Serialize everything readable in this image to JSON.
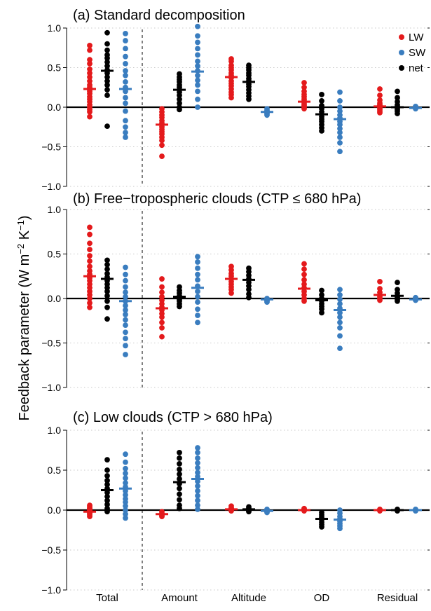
{
  "ylabel": {
    "main": "Feedback parameter (W m",
    "sup1": "−2",
    "mid": " K",
    "sup2": "−1",
    "end": ")"
  },
  "categories": [
    "Total",
    "Amount",
    "Altitude",
    "OD",
    "Residual"
  ],
  "legend": [
    {
      "key": "LW",
      "label": "LW",
      "color": "#e41a1c"
    },
    {
      "key": "SW",
      "label": "SW",
      "color": "#3a7dbf"
    },
    {
      "key": "net",
      "label": "net",
      "color": "#000000"
    }
  ],
  "yticks": [
    "1.0",
    "0.5",
    "0.0",
    "−0.5",
    "−1.0"
  ],
  "chart_data": [
    {
      "type": "scatter",
      "title": "(a) Standard decomposition",
      "ylim": [
        -1.0,
        1.0
      ],
      "grid": true,
      "legend": "top-right",
      "series": [
        {
          "name": "LW",
          "means": [
            0.23,
            -0.22,
            0.38,
            0.07,
            0.01
          ],
          "points": [
            [
              0.78,
              0.72,
              0.6,
              0.55,
              0.48,
              0.43,
              0.38,
              0.33,
              0.28,
              0.25,
              0.22,
              0.2,
              0.17,
              0.13,
              0.1,
              0.07,
              0.03,
              0.0,
              -0.03,
              -0.06,
              -0.12
            ],
            [
              -0.02,
              -0.06,
              -0.1,
              -0.13,
              -0.17,
              -0.2,
              -0.22,
              -0.25,
              -0.28,
              -0.31,
              -0.34,
              -0.38,
              -0.42,
              -0.48,
              -0.62
            ],
            [
              0.61,
              0.58,
              0.53,
              0.5,
              0.47,
              0.43,
              0.4,
              0.37,
              0.33,
              0.3,
              0.27,
              0.23,
              0.19,
              0.16,
              0.12
            ],
            [
              0.31,
              0.25,
              0.2,
              0.16,
              0.13,
              0.1,
              0.08,
              0.06,
              0.04,
              0.02,
              0.0,
              -0.02
            ],
            [
              0.23,
              0.15,
              0.09,
              0.05,
              0.03,
              0.02,
              0.01,
              0.0,
              -0.01,
              -0.03,
              -0.05,
              -0.07
            ]
          ]
        },
        {
          "name": "net",
          "means": [
            0.46,
            0.22,
            0.32,
            -0.09,
            0.0
          ],
          "points": [
            [
              0.94,
              0.8,
              0.72,
              0.66,
              0.62,
              0.57,
              0.52,
              0.47,
              0.43,
              0.38,
              0.33,
              0.28,
              0.22,
              0.15,
              -0.24
            ],
            [
              0.42,
              0.38,
              0.35,
              0.32,
              0.28,
              0.25,
              0.22,
              0.19,
              0.15,
              0.1,
              0.05,
              0.0,
              -0.03
            ],
            [
              0.53,
              0.5,
              0.47,
              0.43,
              0.4,
              0.36,
              0.33,
              0.29,
              0.26,
              0.22,
              0.18,
              0.14,
              0.1
            ],
            [
              0.16,
              0.08,
              0.02,
              -0.02,
              -0.06,
              -0.09,
              -0.12,
              -0.15,
              -0.18,
              -0.22,
              -0.26,
              -0.3
            ],
            [
              0.2,
              0.12,
              0.07,
              0.03,
              0.01,
              0.0,
              -0.01,
              -0.03,
              -0.05,
              -0.08
            ]
          ]
        },
        {
          "name": "SW",
          "means": [
            0.23,
            0.45,
            -0.06,
            -0.15,
            -0.01
          ],
          "points": [
            [
              0.93,
              0.84,
              0.74,
              0.64,
              0.55,
              0.46,
              0.4,
              0.32,
              0.25,
              0.2,
              0.12,
              0.05,
              -0.05,
              -0.17,
              -0.25,
              -0.32,
              -0.38
            ],
            [
              1.02,
              0.9,
              0.82,
              0.74,
              0.66,
              0.58,
              0.52,
              0.46,
              0.4,
              0.34,
              0.28,
              0.2,
              0.1,
              0.0
            ],
            [
              -0.02,
              -0.04,
              -0.05,
              -0.06,
              -0.07,
              -0.08,
              -0.1
            ],
            [
              0.19,
              0.08,
              0.0,
              -0.05,
              -0.1,
              -0.14,
              -0.18,
              -0.22,
              -0.27,
              -0.32,
              -0.38,
              -0.45,
              -0.56
            ],
            [
              0.01,
              0.0,
              -0.01,
              -0.02
            ]
          ]
        }
      ]
    },
    {
      "type": "scatter",
      "title": "(b) Free−tropospheric clouds (CTP ≤ 680 hPa)",
      "ylim": [
        -1.0,
        1.0
      ],
      "grid": true,
      "series": [
        {
          "name": "LW",
          "means": [
            0.25,
            -0.11,
            0.22,
            0.11,
            0.04
          ],
          "points": [
            [
              0.8,
              0.72,
              0.62,
              0.55,
              0.48,
              0.42,
              0.36,
              0.31,
              0.27,
              0.23,
              0.2,
              0.16,
              0.12,
              0.08,
              0.04,
              0.0,
              -0.05,
              -0.1
            ],
            [
              0.22,
              0.13,
              0.07,
              0.02,
              -0.02,
              -0.06,
              -0.1,
              -0.13,
              -0.17,
              -0.21,
              -0.27,
              -0.33,
              -0.43
            ],
            [
              0.36,
              0.32,
              0.28,
              0.25,
              0.22,
              0.19,
              0.16,
              0.13,
              0.1,
              0.06
            ],
            [
              0.39,
              0.33,
              0.27,
              0.21,
              0.16,
              0.12,
              0.08,
              0.04,
              0.0,
              -0.03
            ],
            [
              0.19,
              0.11,
              0.07,
              0.04,
              0.02,
              0.0,
              -0.02
            ]
          ]
        },
        {
          "name": "net",
          "means": [
            0.22,
            0.02,
            0.21,
            -0.02,
            0.03
          ],
          "points": [
            [
              0.43,
              0.38,
              0.33,
              0.28,
              0.24,
              0.2,
              0.16,
              0.12,
              0.08,
              0.03,
              -0.03,
              -0.1,
              -0.23
            ],
            [
              0.13,
              0.09,
              0.06,
              0.03,
              0.01,
              -0.01,
              -0.03,
              -0.06,
              -0.09
            ],
            [
              0.34,
              0.3,
              0.26,
              0.22,
              0.18,
              0.14,
              0.1,
              0.05,
              0.01
            ],
            [
              0.09,
              0.04,
              0.0,
              -0.03,
              -0.06,
              -0.09,
              -0.12,
              -0.16
            ],
            [
              0.18,
              0.1,
              0.06,
              0.03,
              0.01,
              -0.01,
              -0.03
            ]
          ]
        },
        {
          "name": "SW",
          "means": [
            -0.03,
            0.12,
            -0.01,
            -0.13,
            -0.01
          ],
          "points": [
            [
              0.35,
              0.27,
              0.2,
              0.13,
              0.07,
              0.02,
              -0.03,
              -0.08,
              -0.13,
              -0.18,
              -0.24,
              -0.3,
              -0.38,
              -0.45,
              -0.53,
              -0.63
            ],
            [
              0.47,
              0.41,
              0.34,
              0.27,
              0.21,
              0.14,
              0.08,
              0.02,
              -0.04,
              -0.12,
              -0.19,
              -0.27
            ],
            [
              0.0,
              -0.01,
              -0.02,
              -0.03,
              -0.04
            ],
            [
              0.1,
              0.04,
              -0.01,
              -0.06,
              -0.11,
              -0.16,
              -0.21,
              -0.27,
              -0.33,
              -0.42,
              -0.56
            ],
            [
              0.01,
              0.0,
              -0.01,
              -0.02
            ]
          ]
        }
      ]
    },
    {
      "type": "scatter",
      "title": "(c) Low clouds (CTP > 680 hPa)",
      "ylim": [
        -1.0,
        1.0
      ],
      "grid": true,
      "series": [
        {
          "name": "LW",
          "means": [
            -0.02,
            -0.05,
            0.01,
            0.0,
            0.0
          ],
          "points": [
            [
              0.06,
              0.04,
              0.02,
              0.01,
              0.0,
              -0.01,
              -0.02,
              -0.03,
              -0.04,
              -0.06,
              -0.08
            ],
            [
              -0.02,
              -0.04,
              -0.05,
              -0.06,
              -0.07,
              -0.08
            ],
            [
              0.05,
              0.03,
              0.02,
              0.01,
              0.0,
              -0.01
            ],
            [
              0.02,
              0.01,
              0.0,
              -0.01
            ],
            [
              0.01,
              0.0,
              -0.01
            ]
          ]
        },
        {
          "name": "net",
          "means": [
            0.25,
            0.35,
            0.01,
            -0.11,
            0.0
          ],
          "points": [
            [
              0.63,
              0.5,
              0.43,
              0.37,
              0.32,
              0.27,
              0.22,
              0.17,
              0.12,
              0.07,
              0.02,
              -0.02
            ],
            [
              0.72,
              0.65,
              0.58,
              0.51,
              0.45,
              0.39,
              0.33,
              0.27,
              0.2,
              0.13,
              0.06,
              0.02
            ],
            [
              0.04,
              0.02,
              0.0,
              -0.01,
              -0.02
            ],
            [
              -0.03,
              -0.06,
              -0.09,
              -0.12,
              -0.15,
              -0.18,
              -0.21
            ],
            [
              0.01,
              0.0,
              -0.01
            ]
          ]
        },
        {
          "name": "SW",
          "means": [
            0.27,
            0.39,
            -0.01,
            -0.12,
            0.0
          ],
          "points": [
            [
              0.7,
              0.6,
              0.52,
              0.46,
              0.4,
              0.34,
              0.29,
              0.24,
              0.19,
              0.14,
              0.1,
              0.05,
              0.0,
              -0.05,
              -0.1
            ],
            [
              0.78,
              0.72,
              0.65,
              0.59,
              0.53,
              0.47,
              0.42,
              0.36,
              0.3,
              0.24,
              0.18,
              0.12,
              0.06,
              0.01
            ],
            [
              0.01,
              0.0,
              -0.01,
              -0.02,
              -0.03
            ],
            [
              0.0,
              -0.04,
              -0.08,
              -0.11,
              -0.14,
              -0.17,
              -0.2,
              -0.23
            ],
            [
              0.01,
              0.0,
              -0.01
            ]
          ]
        }
      ]
    }
  ]
}
